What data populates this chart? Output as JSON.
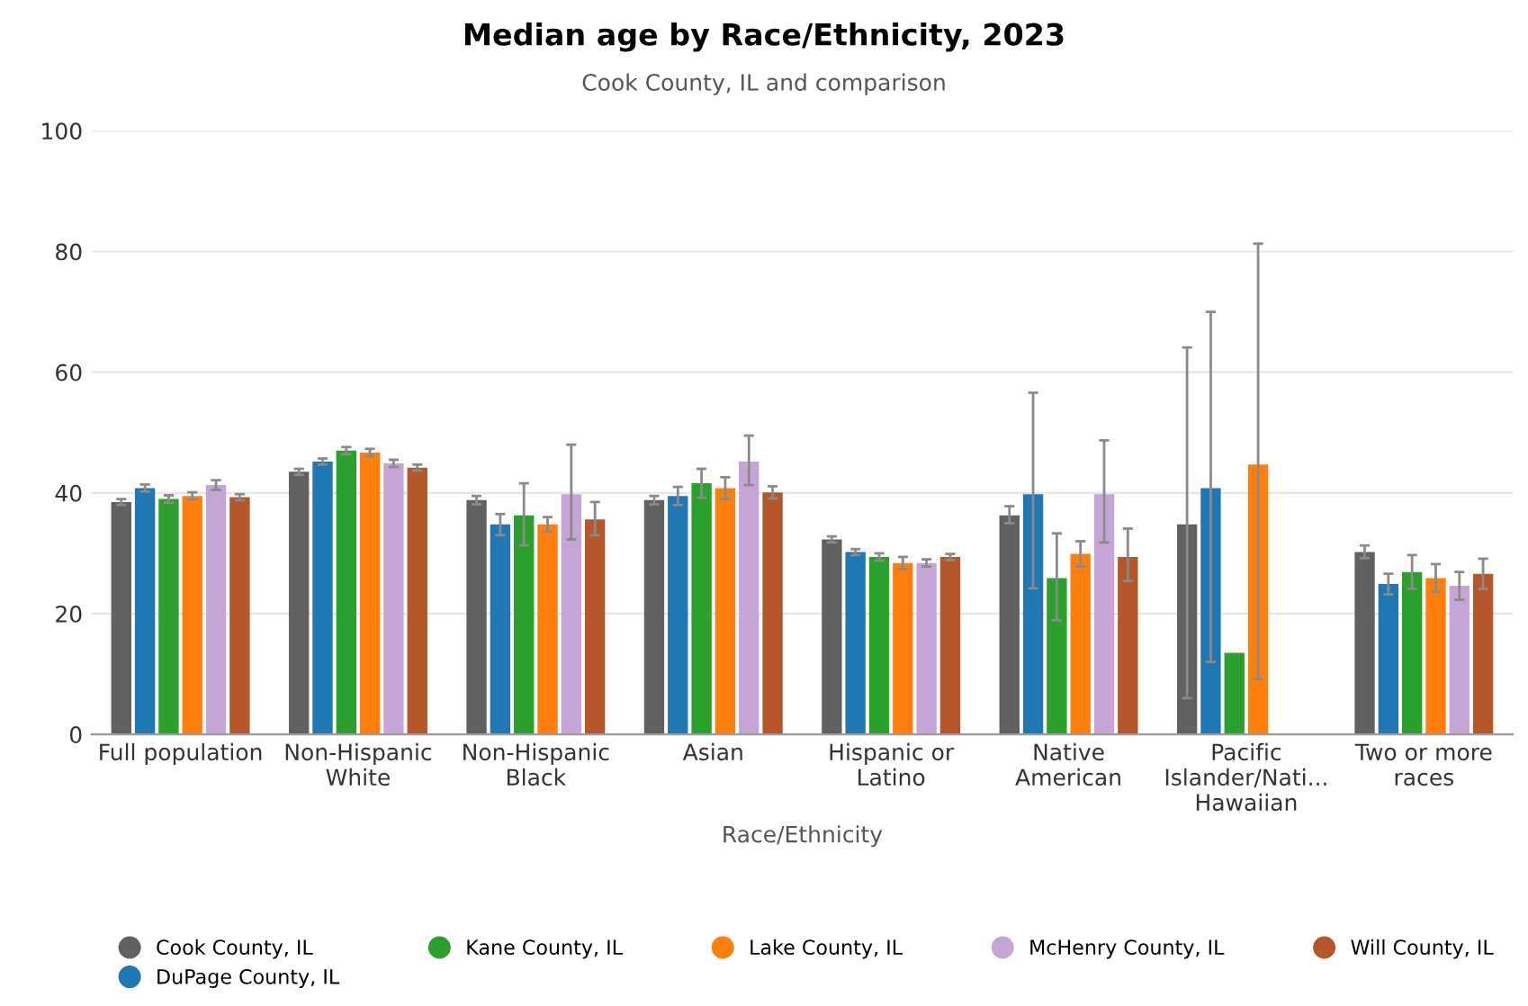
{
  "chart_data": {
    "type": "bar",
    "title": "Median age by Race/Ethnicity, 2023",
    "subtitle": "Cook County, IL and comparison",
    "xlabel": "Race/Ethnicity",
    "categories": [
      "Full population",
      "Non-Hispanic\nWhite",
      "Non-Hispanic\nBlack",
      "Asian",
      "Hispanic or\nLatino",
      "Native\nAmerican",
      "Pacific\nIslander/Nati...\nHawaiian",
      "Two or more\nraces"
    ],
    "ylim": [
      0,
      100
    ],
    "yticks": [
      0,
      20,
      40,
      60,
      80,
      100
    ],
    "grid": "y",
    "legend": "bottom",
    "series": [
      {
        "name": "Cook County, IL",
        "color": "#616161",
        "values": [
          38.5,
          43.5,
          38.8,
          38.8,
          32.3,
          36.3,
          34.8,
          30.2
        ],
        "errors": [
          0.5,
          0.5,
          0.7,
          0.7,
          0.5,
          [
            35,
            37.8
          ],
          [
            6,
            64.1
          ],
          [
            29.2,
            31.3
          ]
        ]
      },
      {
        "name": "DuPage County, IL",
        "color": "#1f77b4",
        "values": [
          40.8,
          45.2,
          34.8,
          39.5,
          30.2,
          39.8,
          40.8,
          24.9
        ],
        "errors": [
          0.6,
          0.5,
          [
            33,
            36.5
          ],
          [
            38,
            41
          ],
          0.5,
          [
            24.2,
            56.6
          ],
          [
            12,
            70
          ],
          [
            23.2,
            26.6
          ]
        ]
      },
      {
        "name": "Kane County, IL",
        "color": "#2ca02c",
        "values": [
          39,
          47,
          36.3,
          41.6,
          29.4,
          25.9,
          13.5,
          26.9
        ],
        "errors": [
          0.6,
          0.6,
          [
            31.3,
            41.6
          ],
          [
            39.2,
            44
          ],
          0.6,
          [
            18.9,
            33.3
          ],
          null,
          [
            24.1,
            29.7
          ]
        ]
      },
      {
        "name": "Lake County, IL",
        "color": "#ff7f0e",
        "values": [
          39.5,
          46.7,
          34.8,
          40.8,
          28.4,
          29.9,
          44.7,
          25.9
        ],
        "errors": [
          0.6,
          0.6,
          [
            33.6,
            36
          ],
          [
            39,
            42.6
          ],
          1,
          [
            27.8,
            32
          ],
          [
            9.2,
            81.3
          ],
          [
            23.6,
            28.2
          ]
        ]
      },
      {
        "name": "McHenry County, IL",
        "color": "#c5a5d6",
        "values": [
          41.3,
          44.9,
          39.8,
          45.2,
          28.4,
          39.8,
          null,
          24.6
        ],
        "errors": [
          0.8,
          0.6,
          [
            32.3,
            48
          ],
          [
            41.3,
            49.5
          ],
          0.6,
          [
            31.8,
            48.7
          ],
          null,
          [
            22.3,
            26.9
          ]
        ]
      },
      {
        "name": "Will County, IL",
        "color": "#b5572a",
        "values": [
          39.3,
          44.2,
          35.6,
          40.1,
          29.4,
          29.4,
          null,
          26.6
        ],
        "errors": [
          0.5,
          0.5,
          [
            33,
            38.5
          ],
          [
            39.1,
            41.1
          ],
          0.5,
          [
            25.4,
            34.1
          ],
          null,
          [
            24.1,
            29.1
          ]
        ]
      }
    ]
  }
}
